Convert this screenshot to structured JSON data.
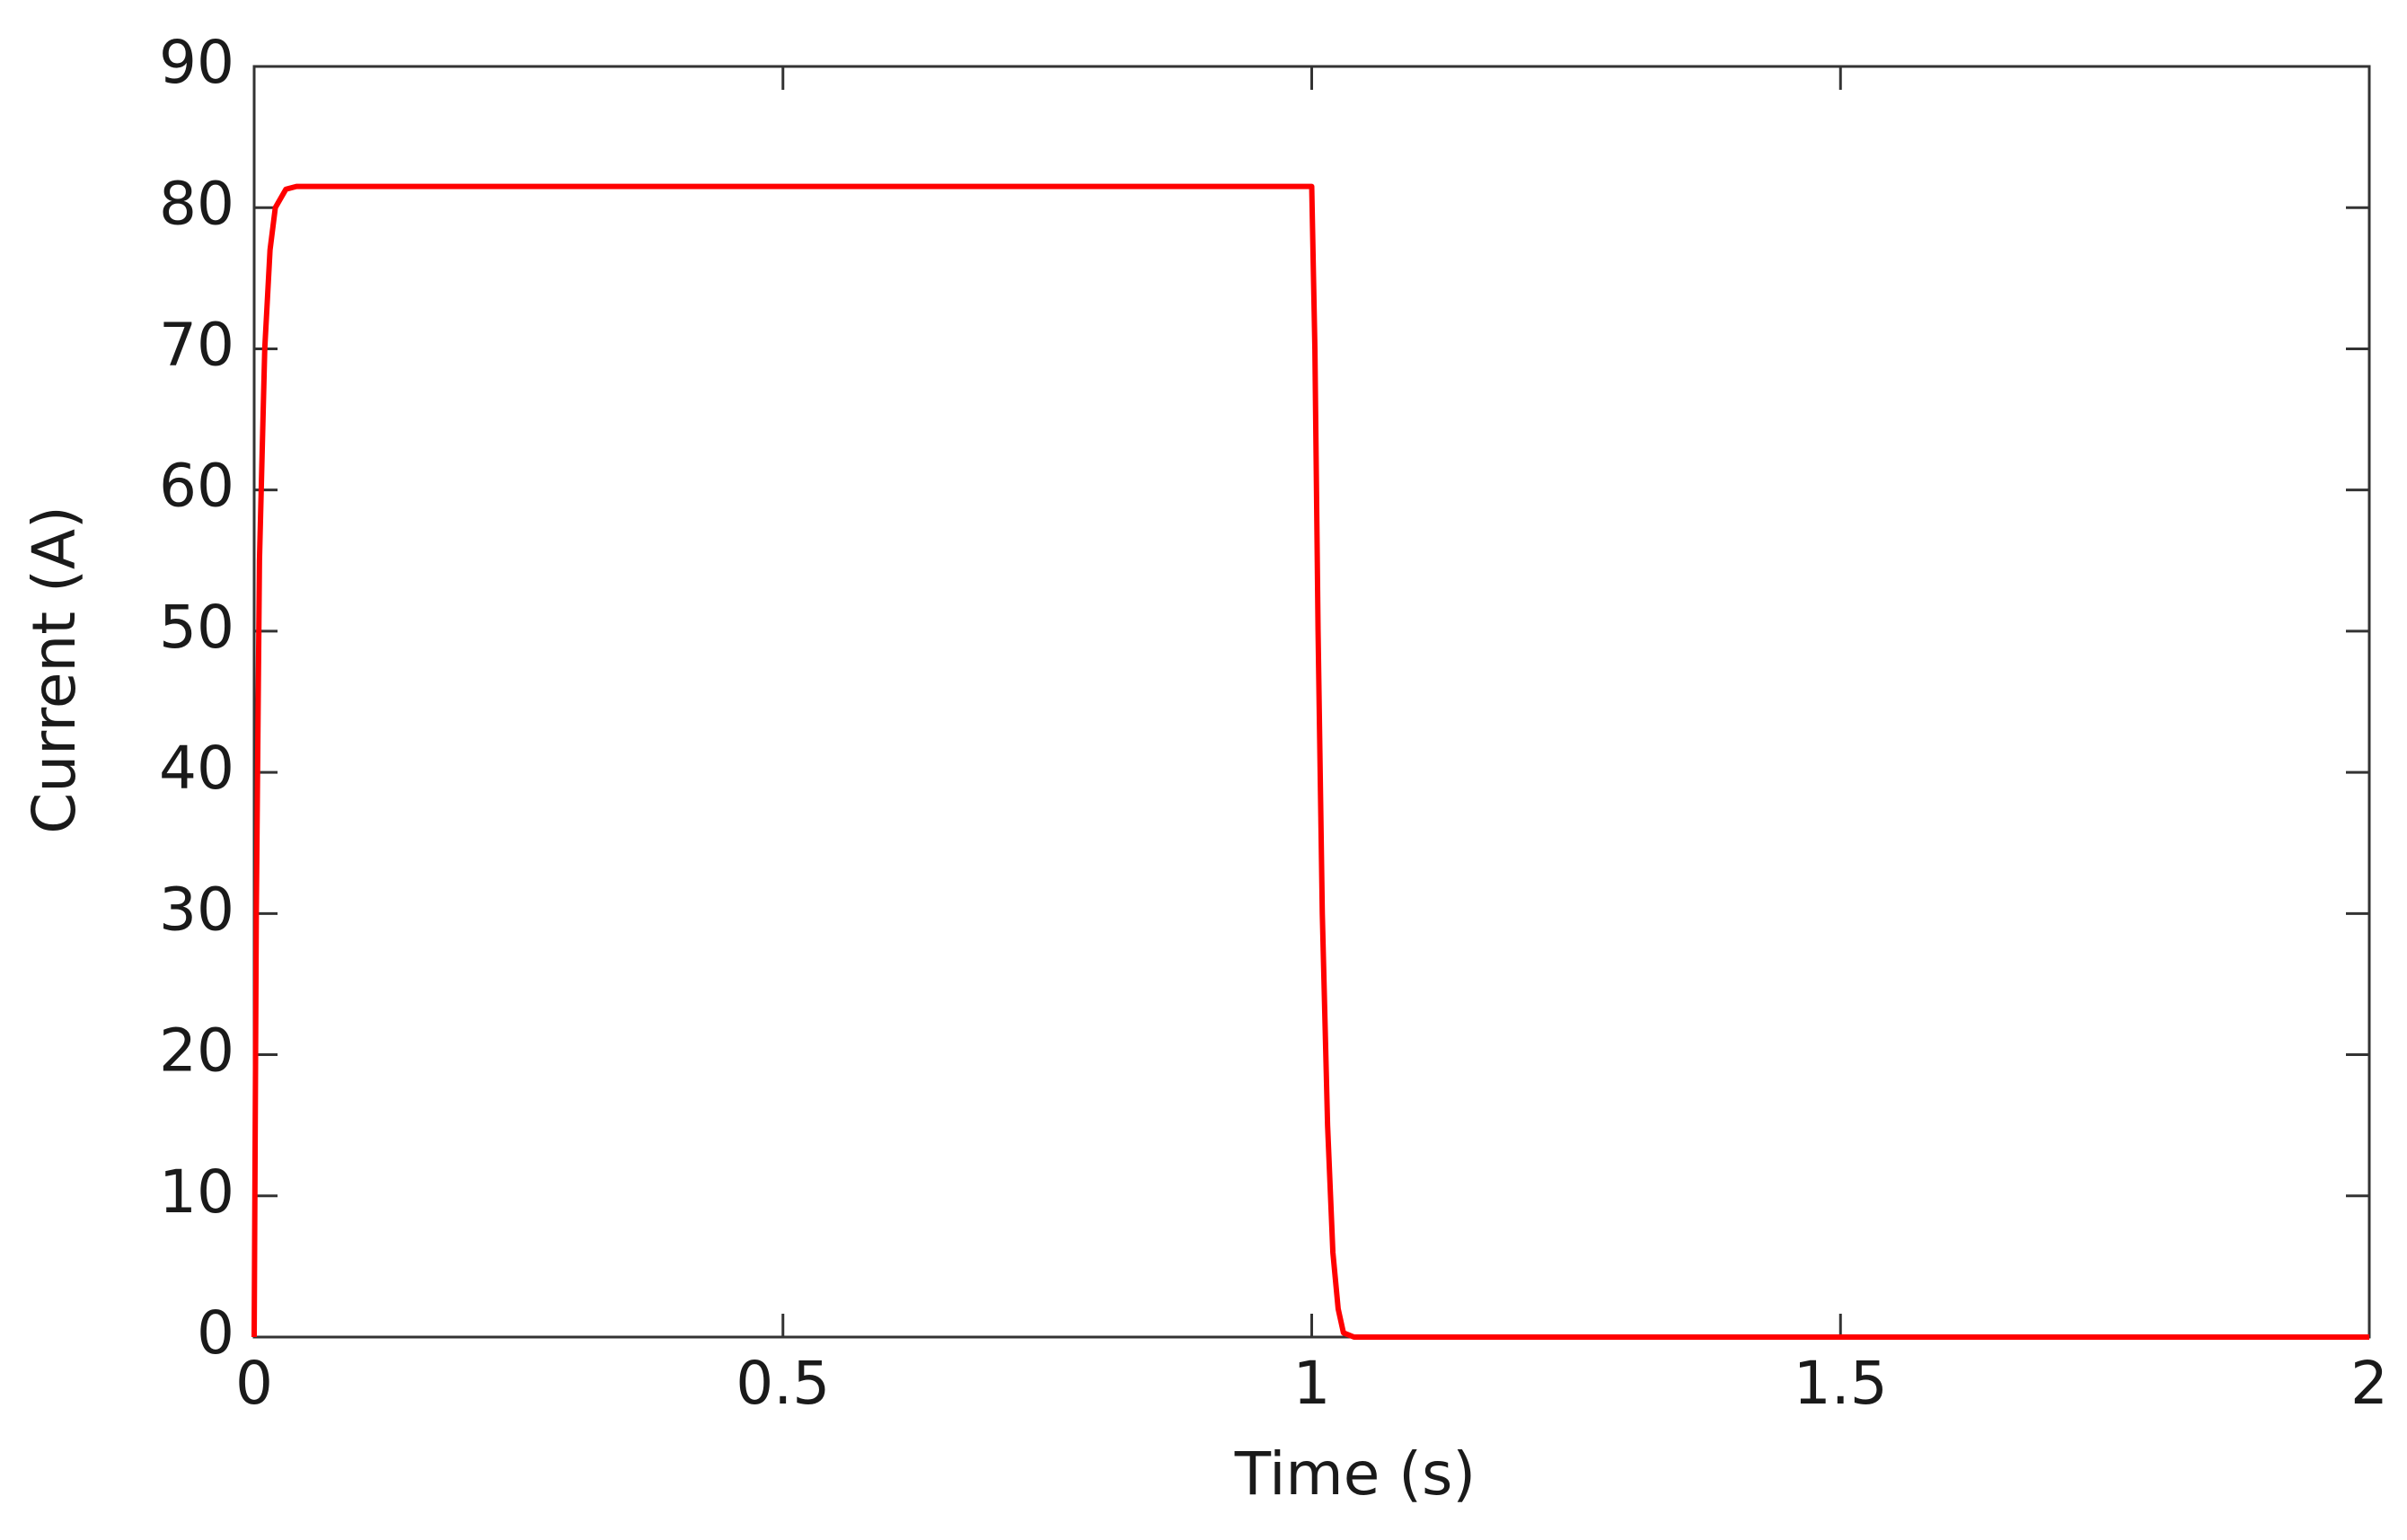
{
  "chart_data": {
    "type": "line",
    "xlabel": "Time (s)",
    "ylabel": "Current (A)",
    "x": [
      0,
      0.002,
      0.005,
      0.01,
      0.015,
      0.02,
      0.03,
      0.04,
      1.0,
      1.003,
      1.006,
      1.01,
      1.015,
      1.02,
      1.025,
      1.03,
      1.04,
      2
    ],
    "series": [
      {
        "name": "Current",
        "color": "#ff0000",
        "values": [
          0,
          30,
          55,
          70,
          77,
          80,
          81.3,
          81.5,
          81.5,
          70,
          50,
          30,
          15,
          6,
          2,
          0.3,
          0,
          0
        ]
      }
    ],
    "xlim": [
      0,
      2
    ],
    "xticks": [
      0,
      0.5,
      1,
      1.5,
      2
    ],
    "ylim": [
      0,
      90
    ],
    "yticks": [
      0,
      10,
      20,
      30,
      40,
      50,
      60,
      70,
      80,
      90
    ]
  }
}
